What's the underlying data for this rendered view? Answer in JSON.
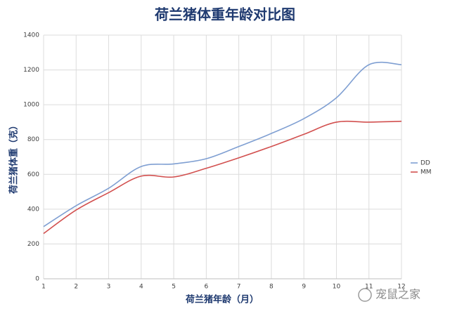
{
  "chart_data": {
    "type": "line",
    "title": "荷兰猪体重年龄对比图",
    "x_label": "荷兰猪年龄（月）",
    "y_label": "荷兰猪体重（克）",
    "x": [
      1,
      2,
      3,
      4,
      5,
      6,
      7,
      8,
      9,
      10,
      11,
      12
    ],
    "series": [
      {
        "name": "DD",
        "color": "#7f9fd2",
        "values": [
          300,
          420,
          520,
          645,
          660,
          690,
          760,
          835,
          920,
          1040,
          1230,
          1230
        ]
      },
      {
        "name": "MM",
        "color": "#d2504f",
        "values": [
          260,
          395,
          495,
          590,
          585,
          635,
          695,
          760,
          830,
          900,
          900,
          905
        ]
      }
    ],
    "xlim": [
      1,
      12
    ],
    "xticks": [
      1,
      2,
      3,
      4,
      5,
      6,
      7,
      8,
      9,
      10,
      11,
      12
    ],
    "ylim": [
      0,
      1400
    ],
    "yticks": [
      0,
      200,
      400,
      600,
      800,
      1000,
      1200,
      1400
    ],
    "grid": true,
    "legend": "right",
    "watermark": "宠鼠之家"
  }
}
